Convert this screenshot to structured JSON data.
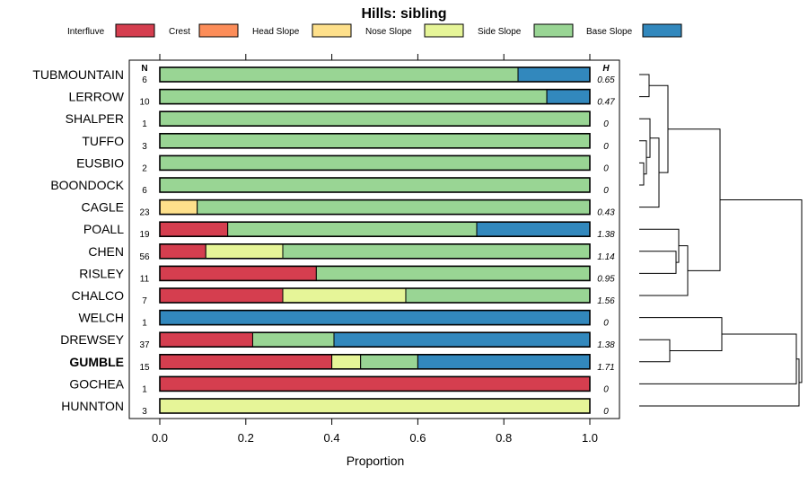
{
  "chart_data": {
    "type": "bar",
    "stacked": true,
    "orientation": "horizontal",
    "title": "Hills: sibling",
    "xlabel": "Proportion",
    "xlim": [
      0,
      1
    ],
    "xticks": [
      "0.0",
      "0.2",
      "0.4",
      "0.6",
      "0.8",
      "1.0"
    ],
    "n_header": "N",
    "h_header": "H",
    "highlight": "GUMBLE",
    "legend": [
      {
        "name": "Interfluve",
        "color": "#d53e4f"
      },
      {
        "name": "Crest",
        "color": "#fc8d59"
      },
      {
        "name": "Head Slope",
        "color": "#fee08b"
      },
      {
        "name": "Nose Slope",
        "color": "#e6f598"
      },
      {
        "name": "Side Slope",
        "color": "#99d594"
      },
      {
        "name": "Base Slope",
        "color": "#3288bd"
      }
    ],
    "rows": [
      {
        "name": "TUBMOUNTAIN",
        "n": "6",
        "h": "0.65",
        "values": [
          0,
          0,
          0,
          0,
          0.833,
          0.167
        ]
      },
      {
        "name": "LERROW",
        "n": "10",
        "h": "0.47",
        "values": [
          0,
          0,
          0,
          0,
          0.9,
          0.1
        ]
      },
      {
        "name": "SHALPER",
        "n": "1",
        "h": "0",
        "values": [
          0,
          0,
          0,
          0,
          1,
          0
        ]
      },
      {
        "name": "TUFFO",
        "n": "3",
        "h": "0",
        "values": [
          0,
          0,
          0,
          0,
          1,
          0
        ]
      },
      {
        "name": "EUSBIO",
        "n": "2",
        "h": "0",
        "values": [
          0,
          0,
          0,
          0,
          1,
          0
        ]
      },
      {
        "name": "BOONDOCK",
        "n": "6",
        "h": "0",
        "values": [
          0,
          0,
          0,
          0,
          1,
          0
        ]
      },
      {
        "name": "CAGLE",
        "n": "23",
        "h": "0.43",
        "values": [
          0,
          0,
          0.087,
          0,
          0.913,
          0
        ]
      },
      {
        "name": "POALL",
        "n": "19",
        "h": "1.38",
        "values": [
          0.158,
          0,
          0,
          0,
          0.579,
          0.263
        ]
      },
      {
        "name": "CHEN",
        "n": "56",
        "h": "1.14",
        "values": [
          0.107,
          0,
          0,
          0.179,
          0.714,
          0
        ]
      },
      {
        "name": "RISLEY",
        "n": "11",
        "h": "0.95",
        "values": [
          0.364,
          0,
          0,
          0,
          0.636,
          0
        ]
      },
      {
        "name": "CHALCO",
        "n": "7",
        "h": "1.56",
        "values": [
          0.286,
          0,
          0,
          0.286,
          0.428,
          0
        ]
      },
      {
        "name": "WELCH",
        "n": "1",
        "h": "0",
        "values": [
          0,
          0,
          0,
          0,
          0,
          1
        ]
      },
      {
        "name": "DREWSEY",
        "n": "37",
        "h": "1.38",
        "values": [
          0.216,
          0,
          0,
          0,
          0.189,
          0.595
        ]
      },
      {
        "name": "GUMBLE",
        "n": "15",
        "h": "1.71",
        "values": [
          0.4,
          0,
          0,
          0.067,
          0.133,
          0.4
        ]
      },
      {
        "name": "GOCHEA",
        "n": "1",
        "h": "0",
        "values": [
          1,
          0,
          0,
          0,
          0,
          0
        ]
      },
      {
        "name": "HUNNTON",
        "n": "3",
        "h": "0",
        "values": [
          0,
          0,
          0,
          1,
          0,
          0
        ]
      }
    ],
    "dendrogram": {
      "type": "hierarchical-clustering",
      "leaf_order": [
        "TUBMOUNTAIN",
        "LERROW",
        "SHALPER",
        "TUFFO",
        "EUSBIO",
        "BOONDOCK",
        "CAGLE",
        "POALL",
        "CHEN",
        "RISLEY",
        "CHALCO",
        "WELCH",
        "DREWSEY",
        "GUMBLE",
        "GOCHEA",
        "HUNNTON"
      ]
    }
  }
}
